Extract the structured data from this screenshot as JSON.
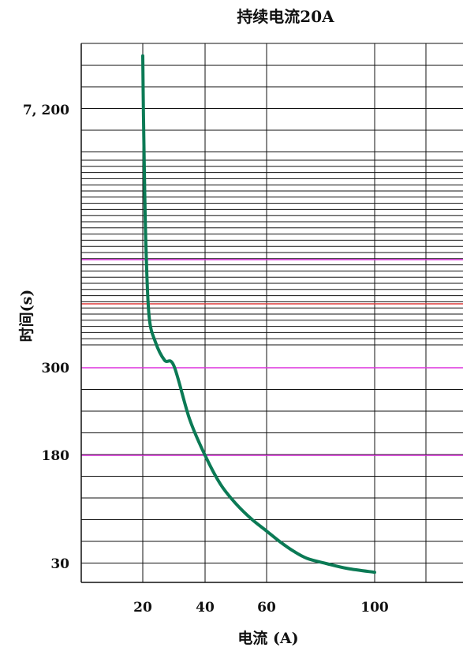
{
  "chart_data": {
    "type": "line",
    "title": "持续电流20A",
    "xlabel": "电流 (A)",
    "ylabel": "时间(s)",
    "x_ticks": [
      "20",
      "40",
      "60",
      "100"
    ],
    "y_ticks": [
      "7, 200",
      "300",
      "180",
      "30"
    ],
    "series": [
      {
        "color": "#0b7a55",
        "points": [
          {
            "x": 20.0,
            "y": 7850
          },
          {
            "x": 20.2,
            "y": 7200
          },
          {
            "x": 20.5,
            "y": 5600
          },
          {
            "x": 21,
            "y": 3600
          },
          {
            "x": 22,
            "y": 1700
          },
          {
            "x": 24,
            "y": 1000
          },
          {
            "x": 27,
            "y": 500
          },
          {
            "x": 30,
            "y": 350
          },
          {
            "x": 35,
            "y": 230
          },
          {
            "x": 40,
            "y": 180
          },
          {
            "x": 45,
            "y": 140
          },
          {
            "x": 50,
            "y": 113
          },
          {
            "x": 55,
            "y": 92
          },
          {
            "x": 60,
            "y": 75
          },
          {
            "x": 65,
            "y": 60
          },
          {
            "x": 70,
            "y": 47
          },
          {
            "x": 75,
            "y": 37
          },
          {
            "x": 82,
            "y": 30
          },
          {
            "x": 90,
            "y": 26
          },
          {
            "x": 100,
            "y": 23
          }
        ]
      }
    ],
    "highlight_lines": {
      "magenta": "#dd33dd",
      "red": "#e03b3b"
    },
    "grid": true
  }
}
